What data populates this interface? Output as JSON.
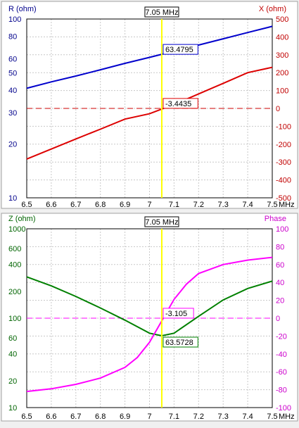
{
  "chart_data": [
    {
      "type": "line",
      "x_unit_label": "MHz",
      "x_ticks": [
        "6.5",
        "6.6",
        "6.7",
        "6.8",
        "6.9",
        "7",
        "7.1",
        "7.2",
        "7.3",
        "7.4",
        "7.5"
      ],
      "xlim": [
        6.5,
        7.5
      ],
      "grid": true,
      "cursor": {
        "x": 7.05,
        "label": "7.05 MHz",
        "color": "#ffff00"
      },
      "left_axis": {
        "label": "R (ohm)",
        "scale": "log",
        "ylim": [
          10,
          100
        ],
        "color": "#00008b",
        "ticks": [
          {
            "v": 100,
            "t": "100"
          },
          {
            "v": 80,
            "t": "80"
          },
          {
            "v": 60,
            "t": "60"
          },
          {
            "v": 50,
            "t": "50"
          },
          {
            "v": 40,
            "t": "40"
          },
          {
            "v": 30,
            "t": "30"
          },
          {
            "v": 20,
            "t": "20"
          },
          {
            "v": 10,
            "t": "10"
          }
        ]
      },
      "right_axis": {
        "label": "X (ohm)",
        "scale": "linear",
        "ylim": [
          -500,
          500
        ],
        "color": "#c00000",
        "ticks": [
          "500",
          "400",
          "300",
          "200",
          "100",
          "0",
          "-100",
          "-200",
          "-300",
          "-400",
          "-500"
        ]
      },
      "series": [
        {
          "axis": "left",
          "color": "#0000cc",
          "x": [
            6.5,
            6.6,
            6.7,
            6.8,
            6.9,
            7.0,
            7.05,
            7.1,
            7.2,
            7.3,
            7.4,
            7.5
          ],
          "y": [
            41,
            44.5,
            48,
            52,
            56.5,
            61,
            63.48,
            66,
            71.5,
            77.5,
            84,
            91
          ],
          "marker": {
            "x": 7.05,
            "label": "63.4795"
          }
        },
        {
          "axis": "right",
          "color": "#dd0000",
          "x": [
            6.5,
            6.6,
            6.7,
            6.8,
            6.9,
            7.0,
            7.05,
            7.1,
            7.2,
            7.3,
            7.4,
            7.5
          ],
          "y": [
            -283,
            -227,
            -171,
            -116,
            -60,
            -30,
            -3.44,
            22,
            81,
            140,
            200,
            230
          ],
          "marker": {
            "x": 7.05,
            "label": "-3.4435"
          }
        }
      ],
      "reference_line": {
        "axis": "right",
        "value": 0,
        "color": "#cc0000",
        "style": "dashed"
      }
    },
    {
      "type": "line",
      "x_unit_label": "MHz",
      "x_ticks": [
        "6.5",
        "6.6",
        "6.7",
        "6.8",
        "6.9",
        "7",
        "7.1",
        "7.2",
        "7.3",
        "7.4",
        "7.5"
      ],
      "xlim": [
        6.5,
        7.5
      ],
      "grid": true,
      "cursor": {
        "x": 7.05,
        "label": "7.05 MHz",
        "color": "#ffff00"
      },
      "left_axis": {
        "label": "Z (ohm)",
        "scale": "log",
        "ylim": [
          10,
          1000
        ],
        "color": "#006400",
        "ticks": [
          {
            "v": 1000,
            "t": "1000"
          },
          {
            "v": 600,
            "t": "600"
          },
          {
            "v": 400,
            "t": "400"
          },
          {
            "v": 200,
            "t": "200"
          },
          {
            "v": 100,
            "t": "100"
          },
          {
            "v": 60,
            "t": "60"
          },
          {
            "v": 40,
            "t": "40"
          },
          {
            "v": 20,
            "t": "20"
          },
          {
            "v": 10,
            "t": "10"
          }
        ]
      },
      "right_axis": {
        "label": "Phase",
        "scale": "linear",
        "ylim": [
          -100,
          100
        ],
        "color": "#cc00cc",
        "ticks": [
          "100",
          "80",
          "60",
          "40",
          "20",
          "0",
          "-20",
          "-40",
          "-60",
          "-80",
          "-100"
        ]
      },
      "series": [
        {
          "axis": "left",
          "color": "#008000",
          "x": [
            6.5,
            6.6,
            6.7,
            6.8,
            6.9,
            7.0,
            7.05,
            7.1,
            7.2,
            7.3,
            7.4,
            7.5
          ],
          "y": [
            290,
            230,
            175,
            130,
            95,
            68,
            63.57,
            68,
            105,
            160,
            215,
            260
          ],
          "marker": {
            "x": 7.05,
            "label": "63.5728"
          }
        },
        {
          "axis": "right",
          "color": "#ff00ff",
          "x": [
            6.5,
            6.6,
            6.7,
            6.8,
            6.9,
            6.95,
            7.0,
            7.05,
            7.1,
            7.15,
            7.2,
            7.3,
            7.4,
            7.5
          ],
          "y": [
            -82,
            -79,
            -74,
            -67,
            -55,
            -44,
            -27,
            -3.1,
            21,
            38,
            50,
            60,
            65,
            68
          ],
          "marker": {
            "x": 7.05,
            "label": "-3.105"
          }
        }
      ],
      "reference_line": {
        "axis": "right",
        "value": 0,
        "color": "#ff00ff",
        "style": "dashed"
      }
    }
  ]
}
